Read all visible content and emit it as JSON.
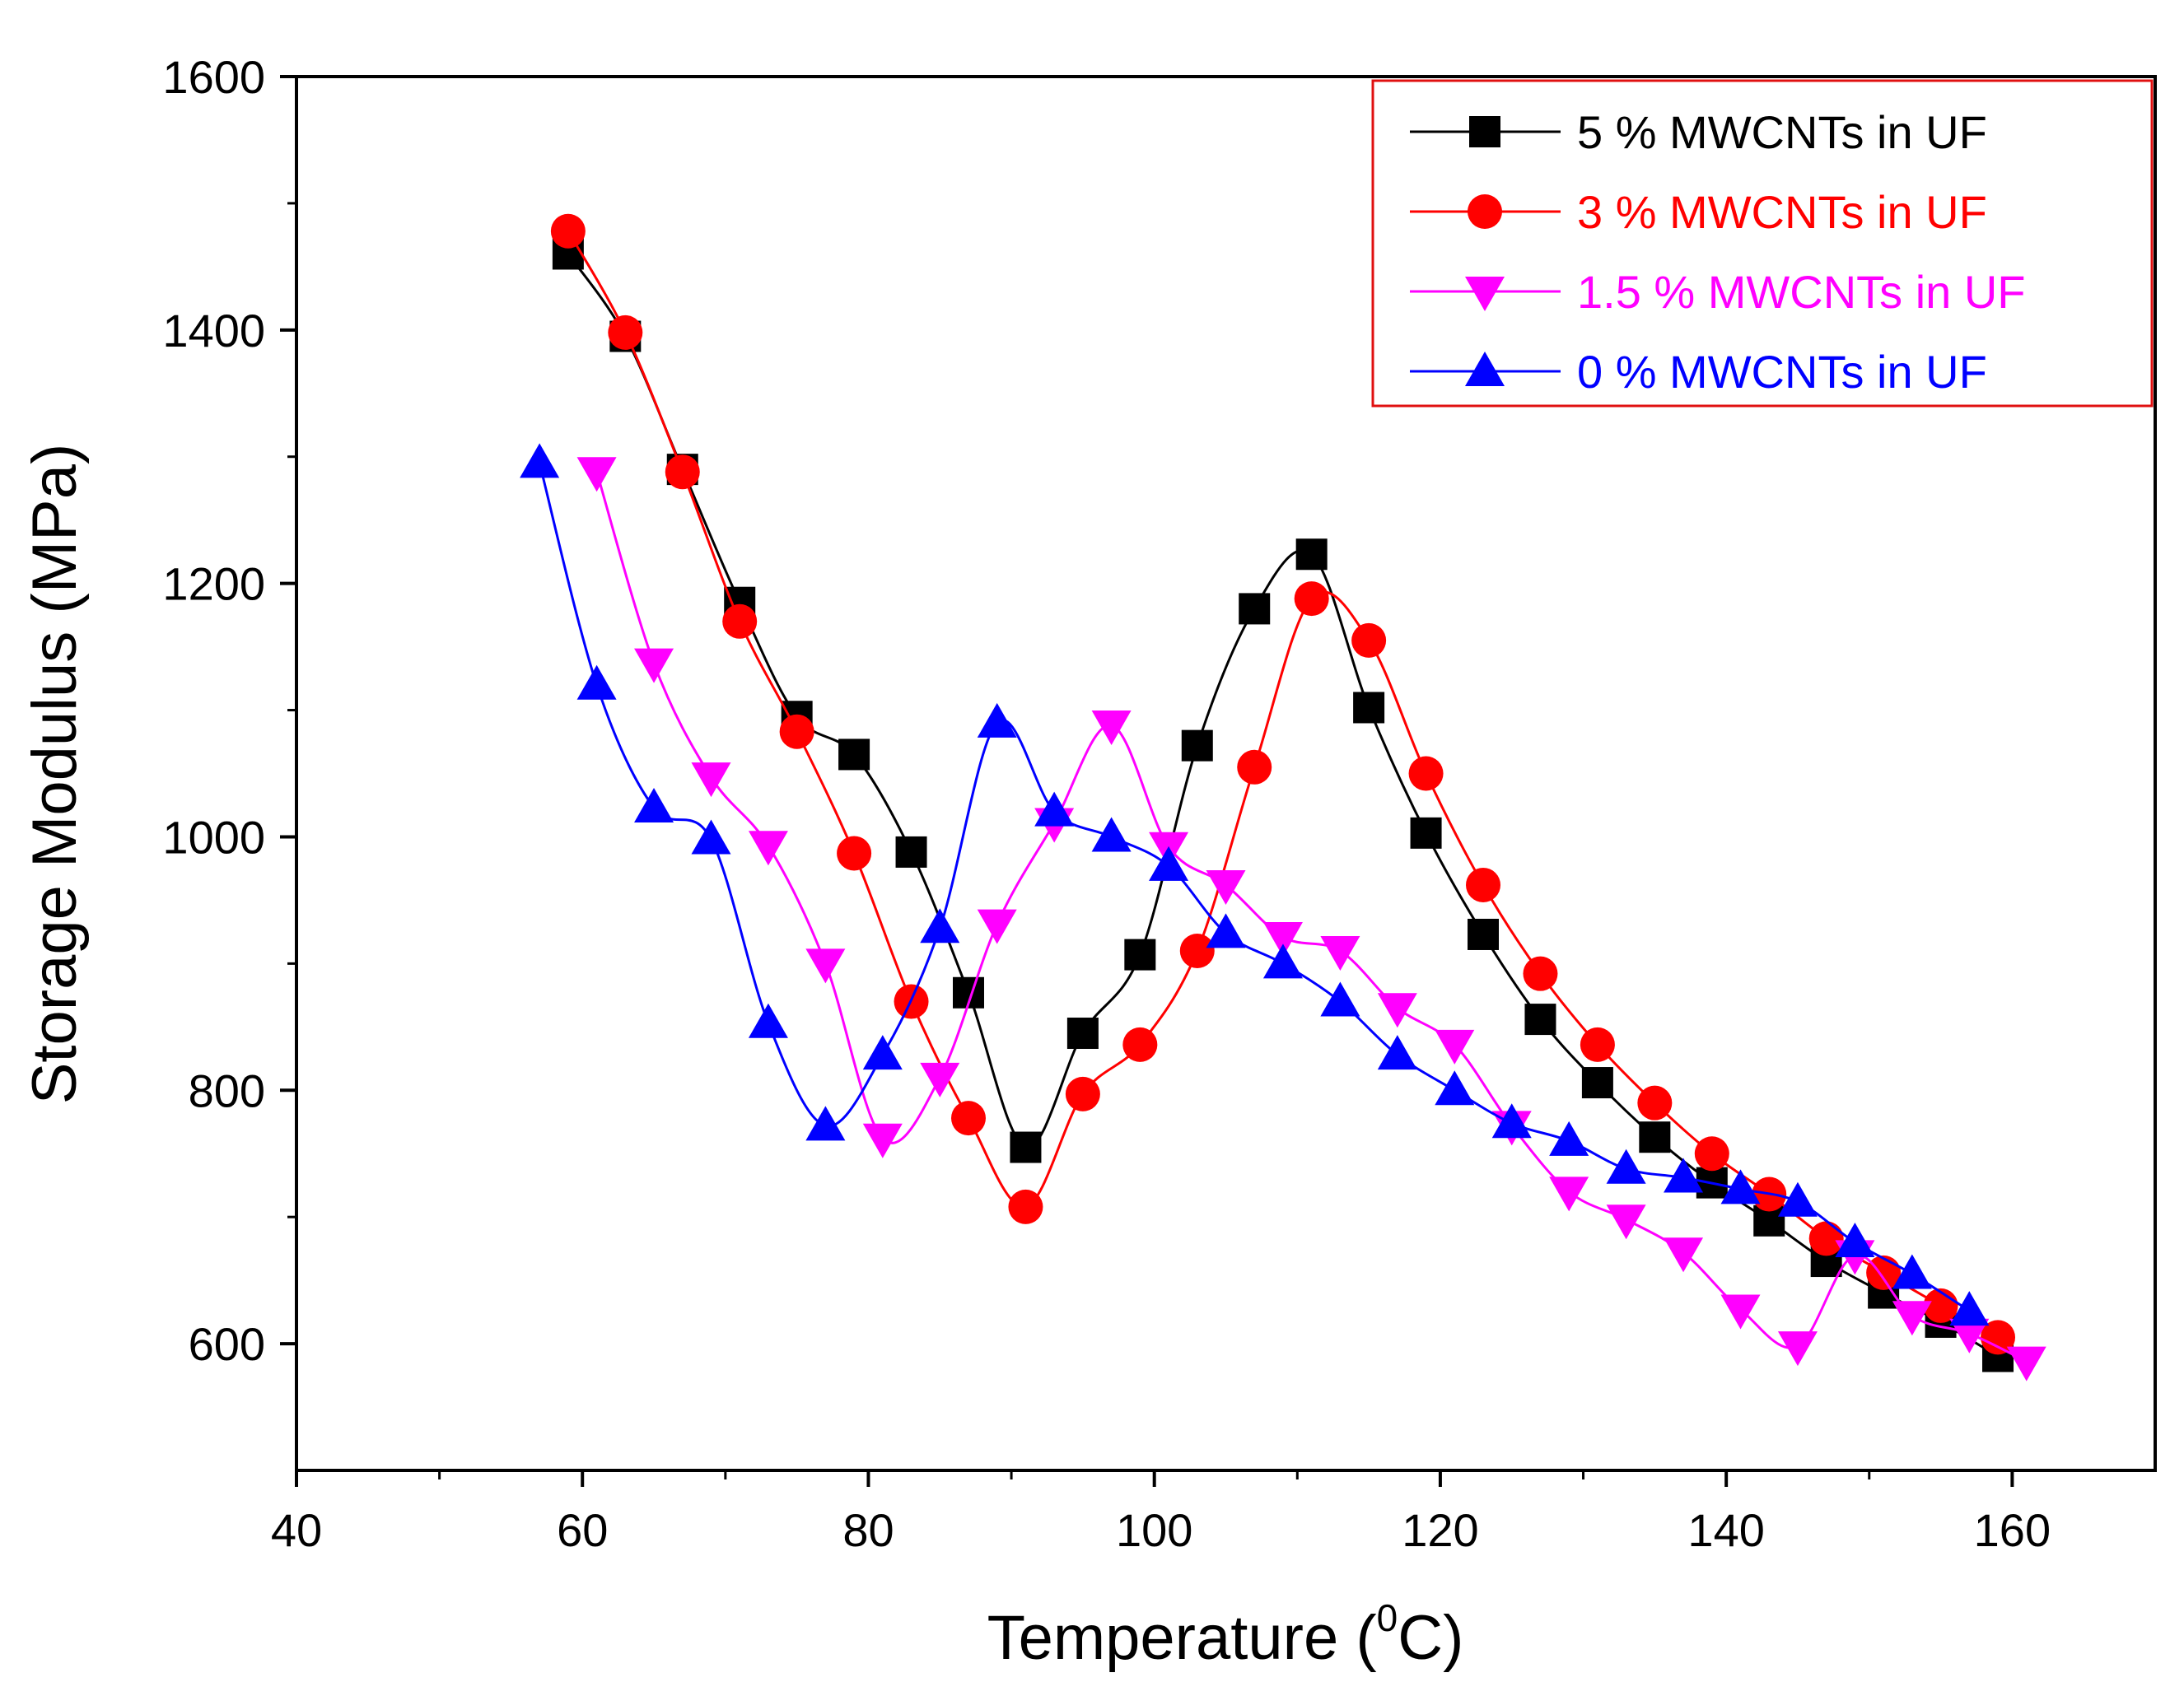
{
  "chart_data": {
    "type": "line",
    "title": "",
    "xlabel": "Temperature (",
    "xlabel_sup": "0",
    "xlabel_suffix": "C)",
    "ylabel": "Storage Modulus (MPa)",
    "xlim": [
      40,
      170
    ],
    "ylim": [
      500,
      1600
    ],
    "x_ticks": [
      40,
      60,
      80,
      100,
      120,
      140,
      160
    ],
    "y_ticks": [
      600,
      800,
      1000,
      1200,
      1400,
      1600
    ],
    "legend_position": "top-right",
    "legend_border_color": "#e01010",
    "series": [
      {
        "name": "5 % MWCNTs in UF",
        "color": "#000000",
        "marker": "square",
        "points": [
          [
            59,
            1460
          ],
          [
            63,
            1395
          ],
          [
            67,
            1290
          ],
          [
            71,
            1185
          ],
          [
            75,
            1095
          ],
          [
            79,
            1065
          ],
          [
            83,
            988
          ],
          [
            87,
            877
          ],
          [
            91,
            755
          ],
          [
            95,
            845
          ],
          [
            99,
            907
          ],
          [
            103,
            1072
          ],
          [
            107,
            1180
          ],
          [
            111,
            1223
          ],
          [
            115,
            1102
          ],
          [
            119,
            1003
          ],
          [
            123,
            923
          ],
          [
            127,
            856
          ],
          [
            131,
            806
          ],
          [
            135,
            763
          ],
          [
            139,
            727
          ],
          [
            143,
            697
          ],
          [
            147,
            665
          ],
          [
            151,
            640
          ],
          [
            155,
            617
          ],
          [
            159,
            590
          ]
        ]
      },
      {
        "name": "3 % MWCNTs in UF",
        "color": "#ff0000",
        "marker": "circle",
        "points": [
          [
            59,
            1478
          ],
          [
            63,
            1398
          ],
          [
            67,
            1288
          ],
          [
            71,
            1170
          ],
          [
            75,
            1083
          ],
          [
            79,
            987
          ],
          [
            83,
            870
          ],
          [
            87,
            778
          ],
          [
            91,
            708
          ],
          [
            95,
            797
          ],
          [
            99,
            836
          ],
          [
            103,
            910
          ],
          [
            107,
            1055
          ],
          [
            111,
            1188
          ],
          [
            115,
            1155
          ],
          [
            119,
            1050
          ],
          [
            123,
            962
          ],
          [
            127,
            892
          ],
          [
            131,
            836
          ],
          [
            135,
            790
          ],
          [
            139,
            750
          ],
          [
            143,
            718
          ],
          [
            147,
            683
          ],
          [
            151,
            656
          ],
          [
            155,
            630
          ],
          [
            159,
            605
          ]
        ]
      },
      {
        "name": "1.5 % MWCNTs in UF",
        "color": "#ff00ff",
        "marker": "triangle-down",
        "points": [
          [
            61,
            1288
          ],
          [
            65,
            1137
          ],
          [
            69,
            1047
          ],
          [
            73,
            993
          ],
          [
            77,
            900
          ],
          [
            81,
            762
          ],
          [
            85,
            810
          ],
          [
            89,
            931
          ],
          [
            93,
            1011
          ],
          [
            97,
            1088
          ],
          [
            101,
            992
          ],
          [
            105,
            962
          ],
          [
            109,
            921
          ],
          [
            113,
            910
          ],
          [
            117,
            865
          ],
          [
            121,
            836
          ],
          [
            125,
            772
          ],
          [
            129,
            720
          ],
          [
            133,
            698
          ],
          [
            137,
            672
          ],
          [
            141,
            627
          ],
          [
            145,
            598
          ],
          [
            149,
            670
          ],
          [
            153,
            622
          ],
          [
            157,
            608
          ],
          [
            161,
            586
          ]
        ]
      },
      {
        "name": "0 % MWCNTs in UF",
        "color": "#0000ff",
        "marker": "triangle-up",
        "points": [
          [
            57,
            1295
          ],
          [
            61,
            1120
          ],
          [
            65,
            1023
          ],
          [
            69,
            998
          ],
          [
            73,
            853
          ],
          [
            77,
            772
          ],
          [
            81,
            828
          ],
          [
            85,
            928
          ],
          [
            89,
            1090
          ],
          [
            93,
            1020
          ],
          [
            97,
            1000
          ],
          [
            101,
            977
          ],
          [
            105,
            924
          ],
          [
            109,
            900
          ],
          [
            113,
            870
          ],
          [
            117,
            828
          ],
          [
            121,
            800
          ],
          [
            125,
            774
          ],
          [
            129,
            760
          ],
          [
            133,
            738
          ],
          [
            137,
            731
          ],
          [
            141,
            722
          ],
          [
            145,
            712
          ],
          [
            149,
            680
          ],
          [
            153,
            655
          ],
          [
            157,
            626
          ]
        ]
      }
    ]
  }
}
